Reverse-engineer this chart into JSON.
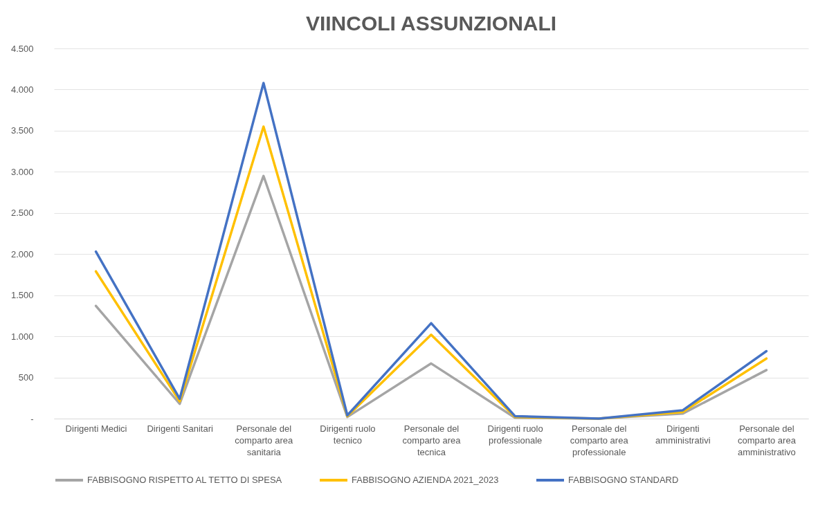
{
  "chart_data": {
    "type": "line",
    "title": "VIINCOLI ASSUNZIONALI",
    "categories": [
      "Dirigenti Medici",
      "Dirigenti Sanitari",
      "Personale del comparto area sanitaria",
      "Dirigenti ruolo tecnico",
      "Personale del comparto area tecnica",
      "Dirigenti ruolo professionale",
      "Personale del comparto area professionale",
      "Dirigenti amministrativi",
      "Personale del comparto area amministrativo"
    ],
    "series": [
      {
        "name": "FABBISOGNO RISPETTO AL TETTO DI SPESA",
        "color": "#a5a5a5",
        "values": [
          1370,
          180,
          2950,
          20,
          670,
          10,
          0,
          60,
          590
        ]
      },
      {
        "name": "FABBISOGNO AZIENDA 2021_2023",
        "color": "#ffc000",
        "values": [
          1790,
          210,
          3550,
          30,
          1020,
          20,
          0,
          80,
          730
        ]
      },
      {
        "name": "FABBISOGNO STANDARD",
        "color": "#4472c4",
        "values": [
          2030,
          240,
          4080,
          40,
          1160,
          30,
          0,
          100,
          820
        ]
      }
    ],
    "ylim": [
      0,
      4500
    ],
    "yticks": [
      {
        "value": 0,
        "label": "-"
      },
      500,
      {
        "value": 1000,
        "label": "1.000"
      },
      {
        "value": 1500,
        "label": "1.500"
      },
      {
        "value": 2000,
        "label": "2.000"
      },
      {
        "value": 2500,
        "label": "2.500"
      },
      {
        "value": 3000,
        "label": "3.000"
      },
      {
        "value": 3500,
        "label": "3.500"
      },
      {
        "value": 4000,
        "label": "4.000"
      },
      {
        "value": 4500,
        "label": "4.500"
      }
    ],
    "grid": "y",
    "legend": "bottom",
    "marker": "none",
    "line_style": "solid"
  }
}
